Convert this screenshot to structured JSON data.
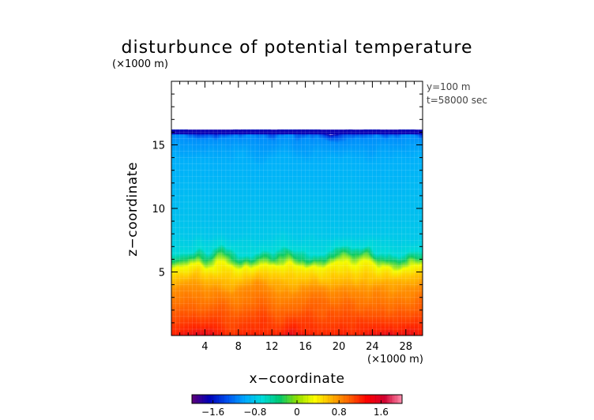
{
  "chart_data": {
    "type": "heatmap",
    "title": "disturbunce of potential temperature",
    "xlabel": "x−coordinate",
    "ylabel": "z−coordinate",
    "x_units": "(×1000 m)",
    "y_units": "(×1000 m)",
    "annotations": [
      "y=100 m",
      "t=58000 sec"
    ],
    "xlim": [
      0,
      30
    ],
    "ylim": [
      0,
      20
    ],
    "x_ticks": [
      4,
      8,
      12,
      16,
      20,
      24,
      28
    ],
    "x_tick_labels": [
      "4",
      "8",
      "12",
      "16",
      "20",
      "24",
      "28"
    ],
    "y_ticks": [
      5,
      10,
      15
    ],
    "y_tick_labels": [
      "5",
      "10",
      "15"
    ],
    "data_top_z": 16.2,
    "field_profile": {
      "z": [
        0,
        0.6,
        1.5,
        3,
        4.5,
        5.5,
        6.2,
        6.8,
        7.3,
        8.5,
        10,
        12,
        14,
        15.5,
        16.0,
        16.2
      ],
      "value": [
        1.9,
        1.6,
        1.2,
        1.0,
        0.8,
        0.55,
        0.3,
        -0.3,
        -0.65,
        -0.8,
        -0.85,
        -0.9,
        -0.95,
        -1.1,
        -1.4,
        -1.7
      ]
    },
    "colorbar": {
      "range": [
        -2.0,
        2.0
      ],
      "ticks": [
        -1.6,
        -0.8,
        0,
        0.8,
        1.6
      ],
      "tick_labels": [
        "−1.6",
        "−0.8",
        "0",
        "0.8",
        "1.6"
      ],
      "colors": [
        "#60007a",
        "#0000b8",
        "#0050f0",
        "#00a8ff",
        "#00dcdc",
        "#00c870",
        "#90e000",
        "#ffff00",
        "#ffb000",
        "#ff6000",
        "#ff0000",
        "#d00030",
        "#ff90b0"
      ]
    }
  }
}
